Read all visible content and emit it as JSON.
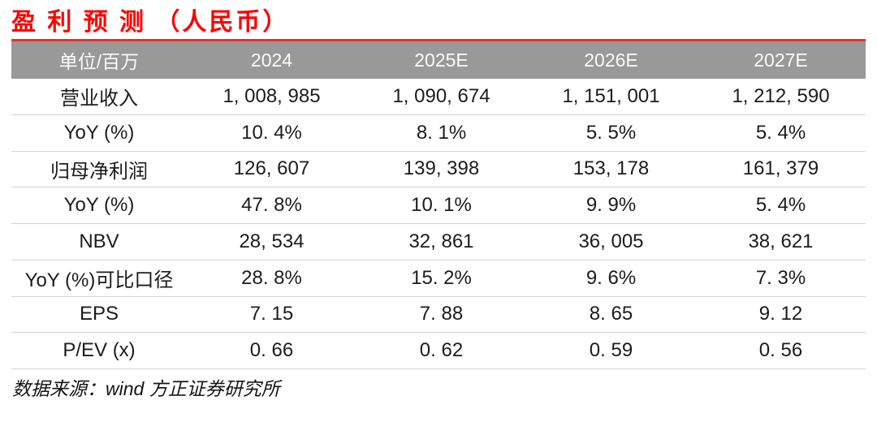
{
  "title": "盈 利 预 测 （人民币）",
  "colors": {
    "title_red": "#fe0000",
    "accent_red": "#e8312a",
    "header_bg": "#999999",
    "header_text": "#fafafa",
    "row_line": "#d4d4d4",
    "body_text": "#1c1c1c"
  },
  "table": {
    "columns": [
      "单位/百万",
      "2024",
      "2025E",
      "2026E",
      "2027E"
    ],
    "rows": [
      {
        "label": "营业收入",
        "values": [
          "1, 008, 985",
          "1, 090, 674",
          "1, 151, 001",
          "1, 212, 590"
        ]
      },
      {
        "label": "YoY (%)",
        "values": [
          "10. 4%",
          "8. 1%",
          "5. 5%",
          "5. 4%"
        ]
      },
      {
        "label": "归母净利润",
        "values": [
          "126, 607",
          "139, 398",
          "153, 178",
          "161, 379"
        ]
      },
      {
        "label": "YoY (%)",
        "values": [
          "47. 8%",
          "10. 1%",
          "9. 9%",
          "5. 4%"
        ]
      },
      {
        "label": "NBV",
        "values": [
          "28, 534",
          "32, 861",
          "36, 005",
          "38, 621"
        ]
      },
      {
        "label": "YoY (%)可比口径",
        "values": [
          "28. 8%",
          "15. 2%",
          "9. 6%",
          "7. 3%"
        ]
      },
      {
        "label": "EPS",
        "values": [
          "7. 15",
          "7. 88",
          "8. 65",
          "9. 12"
        ]
      },
      {
        "label": "P/EV (x)",
        "values": [
          "0. 66",
          "0. 62",
          "0. 59",
          "0. 56"
        ]
      }
    ]
  },
  "footer": {
    "source": "数据来源：wind 方正证券研究所"
  }
}
